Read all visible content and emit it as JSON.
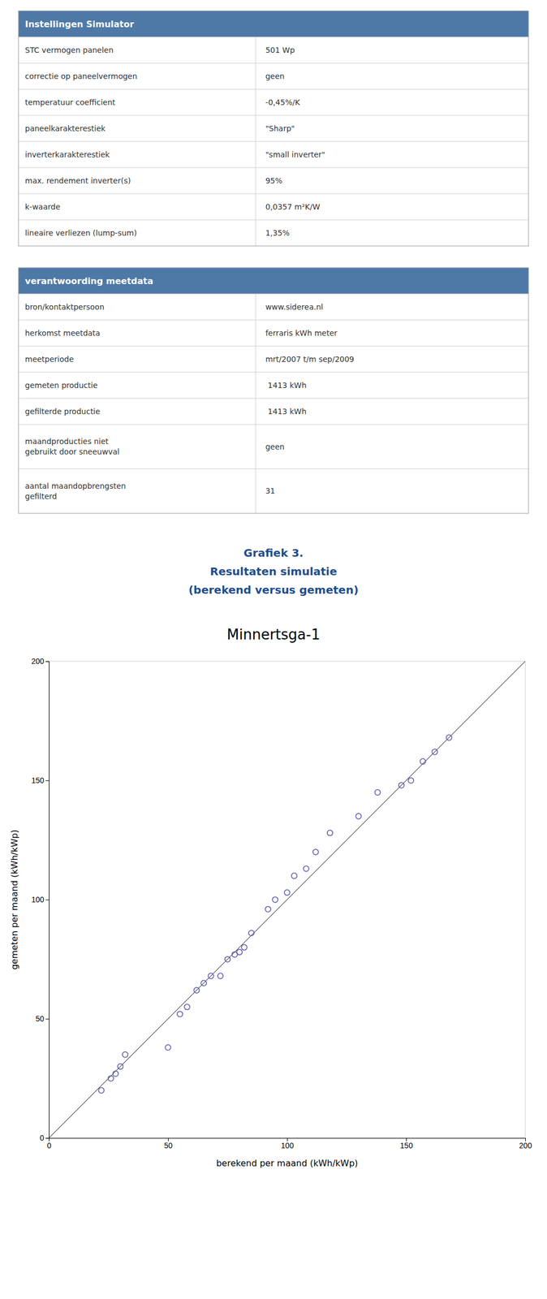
{
  "tables": [
    {
      "title": "Instellingen Simulator",
      "rows": [
        [
          "STC vermogen panelen",
          "501 Wp"
        ],
        [
          "correctie op paneelvermogen",
          "geen"
        ],
        [
          "temperatuur coefficient",
          "-0,45%/K"
        ],
        [
          "paneelkarakterestiek",
          "\"Sharp\""
        ],
        [
          "inverterkarakterestiek",
          "\"small inverter\""
        ],
        [
          "max. rendement inverter(s)",
          "95%"
        ],
        [
          "k-waarde",
          "0,0357 m²K/W"
        ],
        [
          "lineaire verliezen (lump-sum)",
          "1,35%"
        ]
      ]
    },
    {
      "title": "verantwoording meetdata",
      "rows": [
        [
          "bron/kontaktpersoon",
          "www.siderea.nl"
        ],
        [
          "herkomst meetdata",
          "ferraris kWh meter"
        ],
        [
          "meetperiode",
          "mrt/2007 t/m sep/2009"
        ],
        [
          "gemeten productie",
          " 1413 kWh"
        ],
        [
          "gefilterde productie",
          " 1413 kWh"
        ],
        [
          "maandproducties niet\ngebruikt door sneeuwval",
          "geen"
        ],
        [
          "aantal maandopbrengsten\ngefilterd",
          "31"
        ]
      ]
    }
  ],
  "chart_data": {
    "type": "scatter",
    "title": [
      "Grafiek 3.",
      "Resultaten simulatie",
      "(berekend versus gemeten)"
    ],
    "subtitle": "Minnertsga-1",
    "xlabel": "berekend per maand (kWh/kWp)",
    "ylabel": "gemeten per maand (kWh/kWp)",
    "x": [
      22,
      26,
      28,
      30,
      32,
      50,
      55,
      58,
      62,
      65,
      68,
      72,
      75,
      78,
      80,
      82,
      85,
      92,
      95,
      100,
      103,
      108,
      112,
      118,
      130,
      138,
      148,
      152,
      157,
      162,
      168
    ],
    "series": [
      {
        "color": "#5555AA",
        "marker": "circle",
        "values": [
          20,
          25,
          27,
          30,
          35,
          38,
          52,
          55,
          62,
          65,
          68,
          68,
          75,
          77,
          78,
          80,
          86,
          96,
          100,
          103,
          110,
          113,
          120,
          128,
          135,
          145,
          148,
          150,
          158,
          162,
          168
        ]
      }
    ],
    "xlim": [
      0,
      200
    ],
    "ylim": [
      0,
      200
    ],
    "xticks": [
      0,
      50,
      100,
      150,
      200
    ],
    "yticks": [
      0,
      50,
      100,
      150,
      200
    ],
    "grid": false
  }
}
